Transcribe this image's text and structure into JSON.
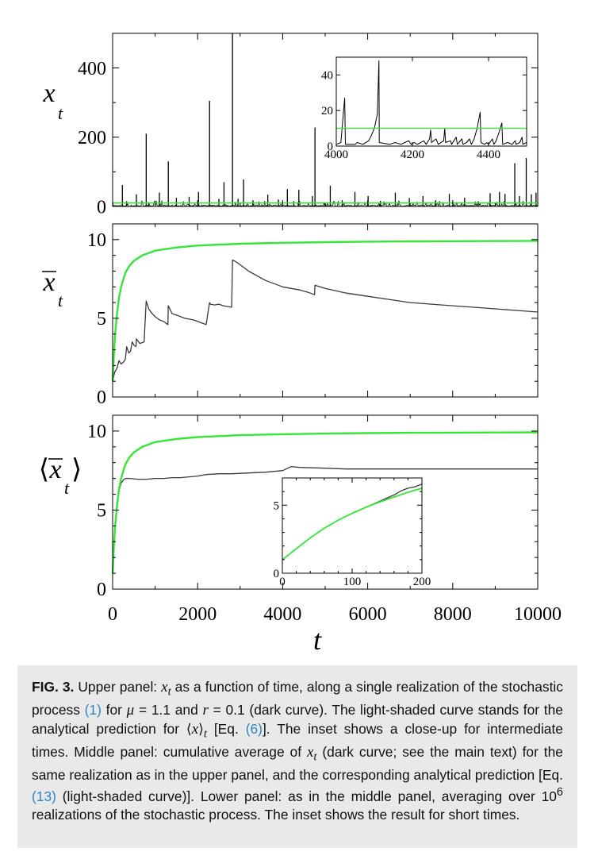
{
  "chart_data": [
    {
      "type": "line",
      "panel": "upper",
      "ylabel": "x_t",
      "xlim": [
        0,
        10000
      ],
      "ylim": [
        0,
        500
      ],
      "yticks": [
        0,
        200,
        400
      ],
      "series": [],
      "spikes": [
        [
          230,
          62
        ],
        [
          330,
          15
        ],
        [
          560,
          35
        ],
        [
          790,
          210
        ],
        [
          850,
          12
        ],
        [
          1100,
          40
        ],
        [
          1310,
          130
        ],
        [
          1500,
          25
        ],
        [
          1800,
          28
        ],
        [
          2020,
          42
        ],
        [
          2280,
          305
        ],
        [
          2500,
          22
        ],
        [
          2620,
          70
        ],
        [
          2820,
          500
        ],
        [
          2950,
          22
        ],
        [
          3080,
          78
        ],
        [
          3300,
          18
        ],
        [
          3650,
          34
        ],
        [
          3900,
          20
        ],
        [
          4110,
          50
        ],
        [
          4260,
          15
        ],
        [
          4380,
          48
        ],
        [
          4700,
          30
        ],
        [
          4760,
          228
        ],
        [
          5120,
          60
        ],
        [
          5400,
          18
        ],
        [
          5700,
          42
        ],
        [
          6010,
          30
        ],
        [
          6300,
          16
        ],
        [
          6650,
          40
        ],
        [
          6980,
          24
        ],
        [
          7300,
          30
        ],
        [
          7600,
          18
        ],
        [
          7920,
          36
        ],
        [
          8280,
          25
        ],
        [
          8600,
          15
        ],
        [
          8880,
          38
        ],
        [
          9100,
          42
        ],
        [
          9230,
          36
        ],
        [
          9460,
          125
        ],
        [
          9570,
          30
        ],
        [
          9730,
          140
        ],
        [
          9850,
          35
        ],
        [
          9960,
          40
        ]
      ],
      "prediction": 10,
      "inset": {
        "xlim": [
          4000,
          4500
        ],
        "ylim": [
          0,
          50
        ],
        "xticks": [
          4000,
          4200,
          4400
        ],
        "yticks": [
          0,
          20,
          40
        ],
        "prediction": 10,
        "points": [
          [
            4000,
            1
          ],
          [
            4012,
            2
          ],
          [
            4022,
            27
          ],
          [
            4024,
            1
          ],
          [
            4040,
            1
          ],
          [
            4050,
            1
          ],
          [
            4055,
            2
          ],
          [
            4070,
            1
          ],
          [
            4085,
            3
          ],
          [
            4092,
            6
          ],
          [
            4100,
            10
          ],
          [
            4108,
            18
          ],
          [
            4112,
            48
          ],
          [
            4113,
            2
          ],
          [
            4140,
            1
          ],
          [
            4155,
            2
          ],
          [
            4170,
            1
          ],
          [
            4180,
            2
          ],
          [
            4190,
            3
          ],
          [
            4197,
            1
          ],
          [
            4205,
            2
          ],
          [
            4213,
            1
          ],
          [
            4222,
            2
          ],
          [
            4230,
            3
          ],
          [
            4236,
            1
          ],
          [
            4245,
            4
          ],
          [
            4248,
            9
          ],
          [
            4250,
            2
          ],
          [
            4262,
            4
          ],
          [
            4268,
            1
          ],
          [
            4282,
            3
          ],
          [
            4285,
            10
          ],
          [
            4287,
            2
          ],
          [
            4300,
            3
          ],
          [
            4303,
            1
          ],
          [
            4315,
            5
          ],
          [
            4318,
            1
          ],
          [
            4330,
            4
          ],
          [
            4333,
            1
          ],
          [
            4342,
            2
          ],
          [
            4350,
            4
          ],
          [
            4355,
            1
          ],
          [
            4362,
            4
          ],
          [
            4370,
            10
          ],
          [
            4378,
            19
          ],
          [
            4380,
            2
          ],
          [
            4390,
            1
          ],
          [
            4395,
            2
          ],
          [
            4400,
            1
          ],
          [
            4410,
            4
          ],
          [
            4414,
            1
          ],
          [
            4420,
            3
          ],
          [
            4428,
            8
          ],
          [
            4435,
            13
          ],
          [
            4437,
            1
          ],
          [
            4450,
            2
          ],
          [
            4462,
            1
          ],
          [
            4470,
            3
          ],
          [
            4472,
            1
          ],
          [
            4482,
            2
          ],
          [
            4488,
            5
          ],
          [
            4490,
            1
          ],
          [
            4500,
            2
          ]
        ]
      }
    },
    {
      "type": "line",
      "panel": "middle",
      "ylabel": "x̄_t",
      "xlim": [
        0,
        10000
      ],
      "ylim": [
        0,
        10
      ],
      "yticks": [
        0,
        5,
        10
      ],
      "series": [
        {
          "role": "dark",
          "x": [
            0,
            50,
            100,
            150,
            200,
            250,
            300,
            330,
            380,
            420,
            460,
            500,
            550,
            560,
            640,
            740,
            790,
            850,
            900,
            1000,
            1100,
            1200,
            1300,
            1310,
            1400,
            1500,
            1600,
            1700,
            1800,
            1900,
            2000,
            2100,
            2200,
            2280,
            2300,
            2400,
            2500,
            2600,
            2700,
            2800,
            2820,
            2900,
            3000,
            3100,
            3200,
            3400,
            3600,
            3800,
            4000,
            4200,
            4400,
            4600,
            4750,
            4760,
            5000,
            5500,
            6000,
            6500,
            7000,
            7500,
            8000,
            8500,
            9000,
            9500,
            10000
          ],
          "y": [
            1.0,
            1.6,
            1.8,
            2.3,
            2.1,
            2.2,
            2.4,
            3.2,
            2.8,
            2.9,
            3.5,
            3.3,
            3.2,
            3.7,
            3.4,
            3.5,
            6.1,
            5.6,
            5.4,
            5.1,
            4.9,
            4.8,
            4.6,
            5.8,
            5.3,
            5.2,
            5.1,
            5.0,
            4.95,
            4.9,
            4.8,
            4.7,
            4.6,
            6.0,
            5.9,
            5.85,
            5.9,
            5.8,
            5.75,
            5.7,
            8.7,
            8.6,
            8.4,
            8.2,
            8.0,
            7.7,
            7.4,
            7.2,
            7.0,
            6.9,
            6.8,
            6.65,
            6.5,
            7.1,
            6.9,
            6.6,
            6.4,
            6.2,
            6.0,
            5.9,
            5.8,
            5.7,
            5.6,
            5.5,
            5.4
          ]
        },
        {
          "role": "light",
          "x": [
            0,
            30,
            60,
            100,
            150,
            200,
            300,
            400,
            500,
            700,
            1000,
            1500,
            2000,
            3000,
            4000,
            5000,
            6000,
            7000,
            8000,
            9000,
            10000
          ],
          "y": [
            1.0,
            2.7,
            4.0,
            5.2,
            6.3,
            7.0,
            7.9,
            8.35,
            8.65,
            9.0,
            9.3,
            9.5,
            9.62,
            9.74,
            9.8,
            9.84,
            9.87,
            9.89,
            9.9,
            9.91,
            9.92
          ]
        }
      ]
    },
    {
      "type": "line",
      "panel": "lower",
      "ylabel": "⟨x̄_t⟩",
      "xlabel": "t",
      "xlim": [
        0,
        10000
      ],
      "ylim": [
        0,
        10
      ],
      "xticks": [
        0,
        2000,
        4000,
        6000,
        8000,
        10000
      ],
      "yticks": [
        0,
        5,
        10
      ],
      "series": [
        {
          "role": "dark",
          "x": [
            0,
            50,
            100,
            150,
            200,
            250,
            300,
            400,
            600,
            800,
            1000,
            1200,
            1400,
            1600,
            1800,
            2000,
            2200,
            2500,
            2800,
            3200,
            3600,
            4000,
            4200,
            4400,
            5000,
            5500,
            6000,
            7000,
            8000,
            9000,
            10000
          ],
          "y": [
            1.0,
            3.6,
            5.3,
            6.2,
            6.7,
            6.9,
            7.0,
            7.0,
            6.95,
            6.95,
            7.0,
            7.0,
            7.05,
            7.05,
            7.1,
            7.15,
            7.25,
            7.3,
            7.3,
            7.35,
            7.4,
            7.5,
            7.75,
            7.7,
            7.65,
            7.6,
            7.6,
            7.6,
            7.6,
            7.6,
            7.6
          ]
        },
        {
          "role": "light",
          "x": [
            0,
            30,
            60,
            100,
            150,
            200,
            300,
            400,
            500,
            700,
            1000,
            1500,
            2000,
            3000,
            4000,
            5000,
            6000,
            7000,
            8000,
            9000,
            10000
          ],
          "y": [
            1.0,
            2.7,
            4.0,
            5.2,
            6.3,
            7.0,
            7.9,
            8.35,
            8.65,
            9.0,
            9.3,
            9.5,
            9.62,
            9.74,
            9.8,
            9.84,
            9.87,
            9.89,
            9.9,
            9.91,
            9.92
          ]
        }
      ],
      "inset": {
        "xlim": [
          0,
          200
        ],
        "ylim": [
          0,
          7
        ],
        "xticks": [
          0,
          100,
          200
        ],
        "yticks": [
          0,
          5
        ],
        "dark": {
          "x": [
            0,
            20,
            40,
            60,
            80,
            100,
            120,
            140,
            160,
            170,
            180,
            190,
            200
          ],
          "y": [
            1.0,
            1.8,
            2.6,
            3.3,
            3.9,
            4.4,
            4.85,
            5.3,
            5.75,
            6.05,
            6.25,
            6.35,
            6.55
          ]
        },
        "light": {
          "x": [
            0,
            20,
            40,
            60,
            80,
            100,
            120,
            140,
            160,
            180,
            200
          ],
          "y": [
            1.0,
            1.8,
            2.6,
            3.3,
            3.9,
            4.4,
            4.85,
            5.25,
            5.6,
            5.95,
            6.25
          ]
        }
      }
    }
  ],
  "caption": {
    "label": "FIG. 3.",
    "segments": [
      {
        "t": " Upper panel: ",
        "s": ""
      },
      {
        "t": "x",
        "s": "i"
      },
      {
        "t": "t",
        "s": "isub"
      },
      {
        "t": " as a function of time, along a single realization of the stochastic process ",
        "s": ""
      },
      {
        "t": "(1)",
        "s": "ref"
      },
      {
        "t": " for ",
        "s": ""
      },
      {
        "t": "μ",
        "s": "i"
      },
      {
        "t": " = 1.1 and ",
        "s": ""
      },
      {
        "t": "r",
        "s": "i"
      },
      {
        "t": " = 0.1 (dark curve). The light-shaded curve stands for the analytical prediction for ⟨",
        "s": ""
      },
      {
        "t": "x",
        "s": "i"
      },
      {
        "t": "⟩",
        "s": ""
      },
      {
        "t": "t",
        "s": "isub"
      },
      {
        "t": " [Eq. ",
        "s": ""
      },
      {
        "t": "(6)",
        "s": "ref"
      },
      {
        "t": "]. The inset shows a close-up for intermediate times. Middle panel: cumulative average of ",
        "s": ""
      },
      {
        "t": "x",
        "s": "i"
      },
      {
        "t": "t",
        "s": "isub"
      },
      {
        "t": " (dark curve; see the main text) for the same realization as in the upper panel, and the corresponding analytical prediction [Eq. ",
        "s": ""
      },
      {
        "t": "(13)",
        "s": "ref"
      },
      {
        "t": " (light-shaded curve)]. Lower panel: as in the middle panel, averaging over 10",
        "s": ""
      },
      {
        "t": "6",
        "s": "sup"
      },
      {
        "t": " realizations of the stochastic process. The inset shows the result for short times.",
        "s": ""
      }
    ]
  },
  "colors": {
    "dark": "#3a3a3a",
    "light": "#35e635",
    "caption_bg": "#e9e9e9",
    "ref": "#2e86c1"
  }
}
